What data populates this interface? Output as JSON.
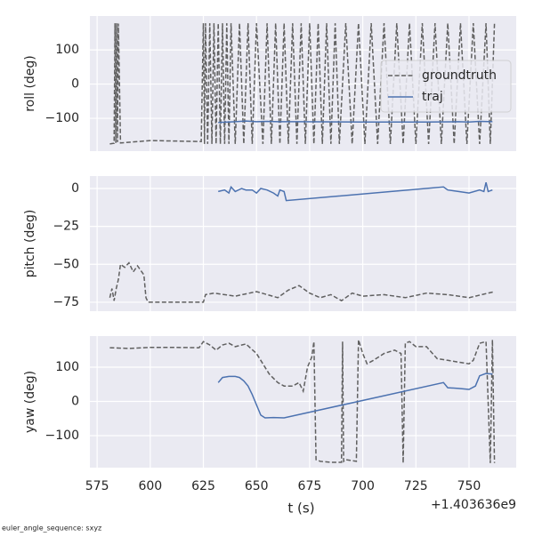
{
  "chart_data": [
    {
      "type": "line",
      "ylabel": "roll (deg)",
      "grid": true,
      "legend": "right",
      "xlim": [
        571.6,
        772.2
      ],
      "xticks": [
        575,
        600,
        625,
        650,
        675,
        700,
        725,
        750
      ],
      "ylim": [
        -196,
        199
      ],
      "yticks": [
        {
          "value": -100,
          "label": "−100"
        },
        0,
        100
      ],
      "series": [
        {
          "name": "groundtruth",
          "color": "#606060",
          "linestyle": "dashed",
          "x": [
            581,
            583,
            583.4,
            583.8,
            584.2,
            584.6,
            585,
            586,
            600,
            624,
            625,
            625.5,
            626,
            627,
            628,
            629,
            630,
            631,
            632,
            633,
            634,
            635,
            636,
            637,
            638,
            640,
            642,
            644,
            646,
            648,
            650,
            653,
            655,
            657,
            659,
            661,
            663,
            665,
            667,
            669,
            671,
            673,
            675,
            677,
            679,
            681,
            683,
            685,
            687,
            689,
            692,
            695,
            698,
            701,
            704,
            707,
            710,
            713,
            716,
            719,
            722,
            725,
            728,
            731,
            734,
            737,
            740,
            743,
            746,
            749,
            752,
            755,
            758,
            760,
            762
          ],
          "values": [
            -175,
            -173,
            178,
            -172,
            178,
            -170,
            177,
            -172,
            -165,
            -168,
            178,
            -175,
            178,
            -175,
            178,
            -175,
            178,
            -175,
            178,
            -175,
            178,
            -175,
            178,
            -175,
            178,
            -175,
            178,
            -175,
            178,
            -175,
            178,
            -175,
            178,
            -175,
            178,
            -175,
            178,
            -175,
            178,
            -175,
            178,
            -175,
            178,
            -175,
            178,
            -175,
            178,
            -175,
            178,
            -175,
            178,
            -175,
            178,
            -175,
            178,
            -175,
            178,
            -175,
            178,
            -175,
            178,
            -175,
            178,
            -175,
            178,
            -175,
            178,
            -175,
            178,
            -175,
            178,
            -175,
            178,
            -175,
            178
          ]
        },
        {
          "name": "traj",
          "color": "#4c72b0",
          "linestyle": "solid",
          "x": [
            632,
            640,
            645,
            650,
            655,
            660,
            670,
            700,
            730,
            745,
            750,
            755,
            761
          ],
          "values": [
            -112,
            -110,
            -108,
            -110,
            -109,
            -110,
            -110,
            -111,
            -111,
            -110,
            -111,
            -109,
            -110
          ]
        }
      ]
    },
    {
      "type": "line",
      "ylabel": "pitch (deg)",
      "grid": true,
      "xlim": [
        571.6,
        772.2
      ],
      "xticks": [
        575,
        600,
        625,
        650,
        675,
        700,
        725,
        750
      ],
      "ylim": [
        -80.9,
        8.2
      ],
      "yticks": [
        {
          "value": -75,
          "label": "−75"
        },
        {
          "value": -50,
          "label": "−50"
        },
        {
          "value": -25,
          "label": "−25"
        },
        0
      ],
      "series": [
        {
          "color": "#606060",
          "linestyle": "dashed",
          "x": [
            581,
            582,
            583,
            584,
            585,
            586,
            588,
            590,
            592,
            594,
            597,
            598,
            599,
            610,
            625,
            626,
            630,
            640,
            650,
            660,
            665,
            670,
            675,
            680,
            685,
            690,
            695,
            700,
            710,
            720,
            730,
            740,
            750,
            762
          ],
          "values": [
            -72,
            -66,
            -74,
            -66,
            -60,
            -50,
            -52,
            -49,
            -55,
            -51,
            -57,
            -72,
            -75,
            -75,
            -75,
            -70,
            -69,
            -71,
            -68,
            -72,
            -67,
            -64,
            -69,
            -72,
            -70,
            -74,
            -69,
            -71,
            -70,
            -72,
            -69,
            -70,
            -72,
            -68
          ]
        },
        {
          "color": "#4c72b0",
          "linestyle": "solid",
          "x": [
            632,
            635,
            637,
            638,
            640,
            643,
            645,
            648,
            650,
            652,
            655,
            658,
            660,
            661,
            663,
            664,
            738,
            740,
            745,
            750,
            755,
            757,
            758,
            759,
            761
          ],
          "values": [
            -2,
            -1,
            -3,
            1,
            -2,
            0,
            -1,
            -1,
            -3,
            0,
            -1,
            -3,
            -5,
            -1,
            -2,
            -8,
            1,
            -1,
            -2,
            -3,
            -1,
            -2,
            4,
            -2,
            -1
          ]
        }
      ]
    },
    {
      "type": "line",
      "ylabel": "yaw (deg)",
      "xlabel": "t (s)",
      "x_offset_label": "+1.403636e9",
      "grid": true,
      "xlim": [
        571.6,
        772.2
      ],
      "xticks": [
        575,
        600,
        625,
        650,
        675,
        700,
        725,
        750
      ],
      "ylim": [
        -193.5,
        191
      ],
      "yticks": [
        {
          "value": -100,
          "label": "−100"
        },
        0,
        100
      ],
      "series": [
        {
          "color": "#606060",
          "linestyle": "dashed",
          "x": [
            581,
            590,
            600,
            610,
            623,
            625,
            628,
            631,
            634,
            637,
            640,
            645,
            650,
            653,
            656,
            660,
            663,
            667,
            670,
            672,
            674,
            676,
            677,
            678,
            680,
            685,
            690,
            690.5,
            691,
            692,
            697,
            698,
            700,
            702,
            705,
            710,
            715,
            718,
            719,
            720,
            722,
            725,
            730,
            735,
            740,
            745,
            750,
            752,
            755,
            758,
            760,
            761,
            762
          ],
          "values": [
            157,
            155,
            158,
            158,
            157,
            175,
            165,
            150,
            165,
            170,
            160,
            168,
            140,
            110,
            80,
            55,
            45,
            45,
            55,
            30,
            100,
            130,
            175,
            -170,
            -175,
            -178,
            -178,
            175,
            -175,
            -170,
            -175,
            180,
            140,
            110,
            120,
            140,
            150,
            140,
            -180,
            170,
            175,
            160,
            160,
            125,
            120,
            115,
            110,
            120,
            170,
            175,
            -180,
            180,
            -180
          ]
        },
        {
          "color": "#4c72b0",
          "linestyle": "solid",
          "x": [
            632,
            634,
            637,
            640,
            642,
            644,
            646,
            648,
            650,
            652,
            654,
            658,
            663,
            738,
            740,
            745,
            750,
            753,
            755,
            758,
            761
          ],
          "values": [
            55,
            70,
            73,
            73,
            70,
            60,
            45,
            20,
            -10,
            -40,
            -48,
            -47,
            -48,
            55,
            40,
            38,
            35,
            45,
            75,
            82,
            80
          ]
        }
      ]
    }
  ],
  "footer": "euler_angle_sequence: sxyz"
}
